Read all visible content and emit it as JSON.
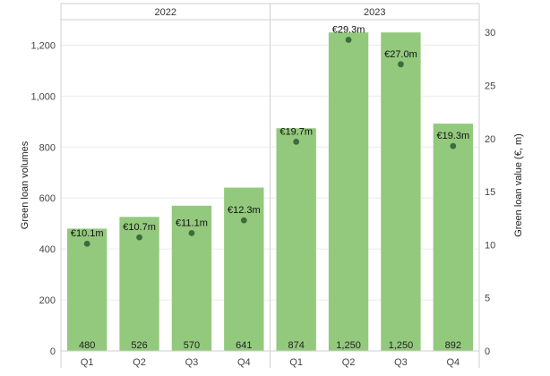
{
  "chart_data": {
    "type": "bar",
    "groups": [
      {
        "label": "2022",
        "categories": [
          "Q1",
          "Q2",
          "Q3",
          "Q4"
        ]
      },
      {
        "label": "2023",
        "categories": [
          "Q1",
          "Q2",
          "Q3",
          "Q4"
        ]
      }
    ],
    "series": [
      {
        "name": "Green loan volumes",
        "type": "bar",
        "axis": "left",
        "values": [
          480,
          526,
          570,
          641,
          874,
          1250,
          1250,
          892
        ],
        "labels": [
          "480",
          "526",
          "570",
          "641",
          "874",
          "1,250",
          "1,250",
          "892"
        ]
      },
      {
        "name": "Green loan value (€, m)",
        "type": "scatter",
        "axis": "right",
        "values": [
          10.1,
          10.7,
          11.1,
          12.3,
          19.7,
          29.3,
          27.0,
          19.3
        ],
        "labels": [
          "€10.1m",
          "€10.7m",
          "€11.1m",
          "€12.3m",
          "€19.7m",
          "€29.3m",
          "€27.0m",
          "€19.3m"
        ]
      }
    ],
    "ylabel": "Green loan volumes",
    "y2label": "Green loan value (€, m)",
    "ylim": [
      0,
      1300
    ],
    "y2lim": [
      0,
      31.2
    ],
    "yticks": [
      0,
      200,
      400,
      600,
      800,
      1000,
      1200
    ],
    "ytick_labels": [
      "0",
      "200",
      "400",
      "600",
      "800",
      "1,000",
      "1,200"
    ],
    "y2ticks": [
      0,
      5,
      10,
      15,
      20,
      25,
      30
    ],
    "y2tick_labels": [
      "0",
      "5",
      "10",
      "15",
      "20",
      "25",
      "30"
    ],
    "grid": true,
    "colors": {
      "bar": "#93c97d",
      "point": "#3d6b3d"
    }
  }
}
